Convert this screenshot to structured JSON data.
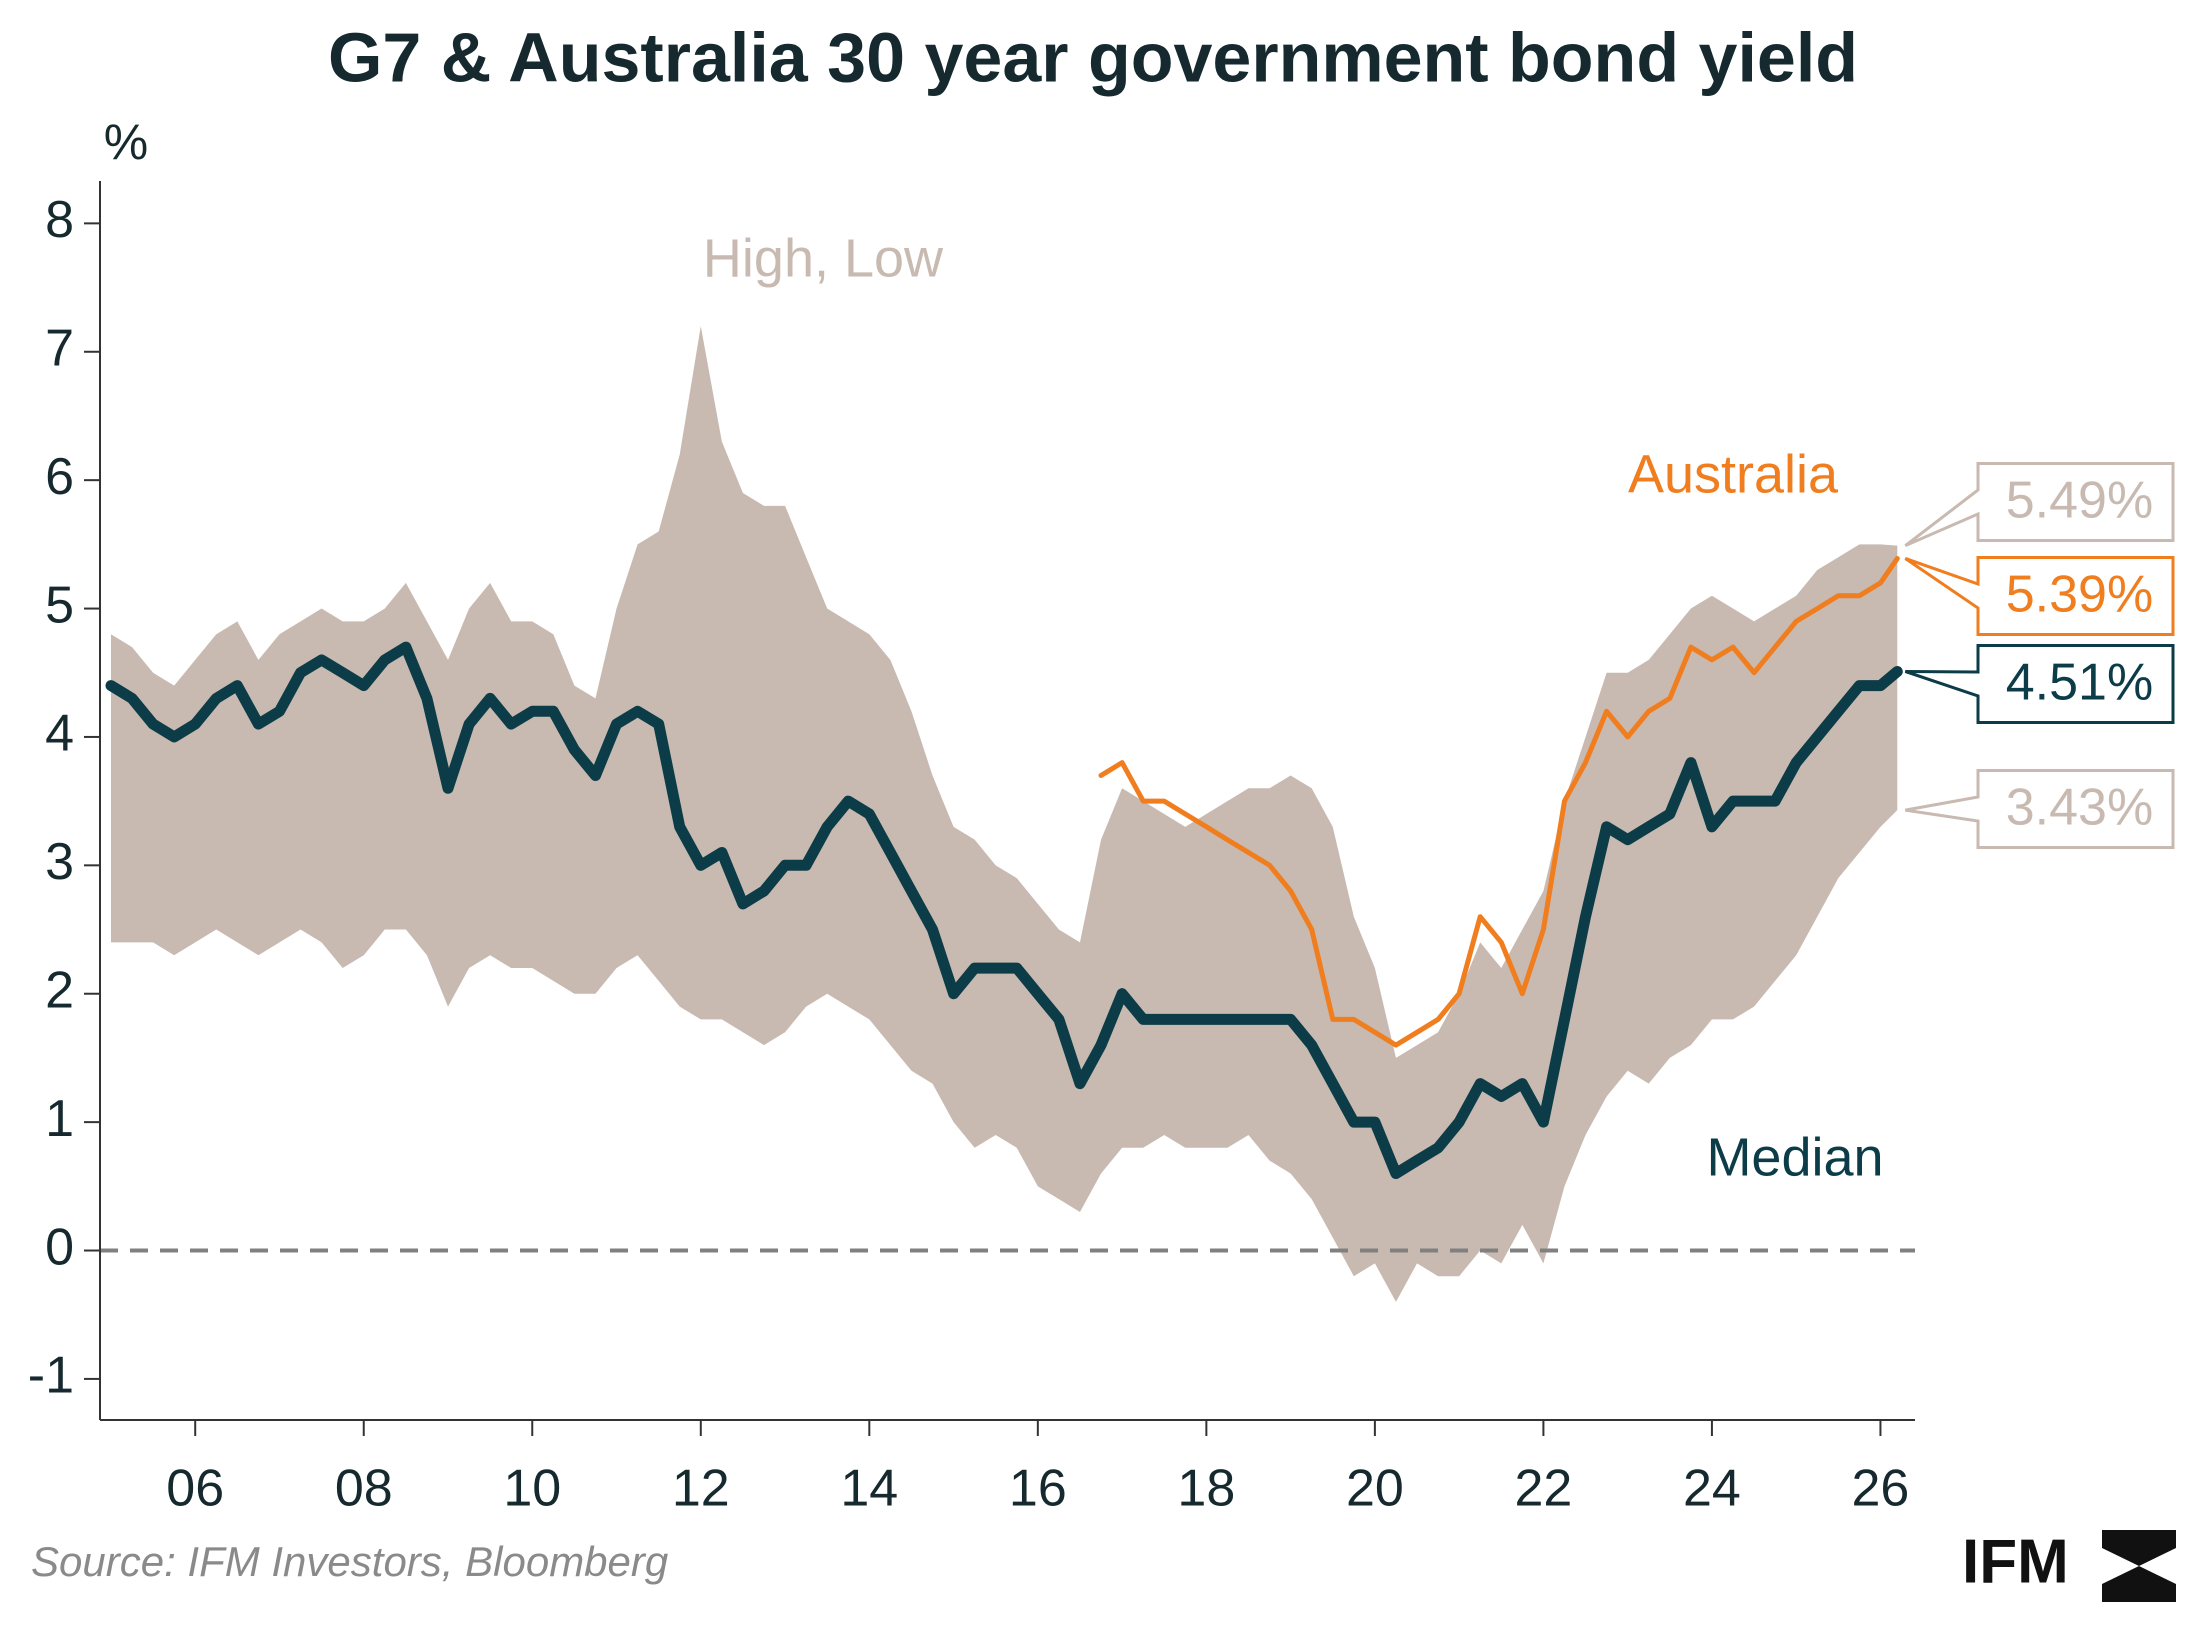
{
  "chart_data": {
    "type": "line",
    "title": "G7 & Australia 30 year government bond yield",
    "y_label": "%",
    "source": "Source: IFM Investors, Bloomberg",
    "logo_text": "IFM",
    "xlim": [
      2004.87,
      2026.41
    ],
    "ylim": [
      -1.32,
      8.33
    ],
    "xticks": [
      {
        "value": 2006,
        "label": "06"
      },
      {
        "value": 2008,
        "label": "08"
      },
      {
        "value": 2010,
        "label": "10"
      },
      {
        "value": 2012,
        "label": "12"
      },
      {
        "value": 2014,
        "label": "14"
      },
      {
        "value": 2016,
        "label": "16"
      },
      {
        "value": 2018,
        "label": "18"
      },
      {
        "value": 2020,
        "label": "20"
      },
      {
        "value": 2022,
        "label": "22"
      },
      {
        "value": 2024,
        "label": "24"
      },
      {
        "value": 2026,
        "label": "26"
      }
    ],
    "yticks": [
      -1,
      0,
      1,
      2,
      3,
      4,
      5,
      6,
      7,
      8
    ],
    "reference_line": 0,
    "x": [
      2005,
      2005.25,
      2005.5,
      2005.75,
      2006,
      2006.25,
      2006.5,
      2006.75,
      2007,
      2007.25,
      2007.5,
      2007.75,
      2008,
      2008.25,
      2008.5,
      2008.75,
      2009,
      2009.25,
      2009.5,
      2009.75,
      2010,
      2010.25,
      2010.5,
      2010.75,
      2011,
      2011.25,
      2011.5,
      2011.75,
      2012,
      2012.25,
      2012.5,
      2012.75,
      2013,
      2013.25,
      2013.5,
      2013.75,
      2014,
      2014.25,
      2014.5,
      2014.75,
      2015,
      2015.25,
      2015.5,
      2015.75,
      2016,
      2016.25,
      2016.5,
      2016.75,
      2017,
      2017.25,
      2017.5,
      2017.75,
      2018,
      2018.25,
      2018.5,
      2018.75,
      2019,
      2019.25,
      2019.5,
      2019.75,
      2020,
      2020.25,
      2020.5,
      2020.75,
      2021,
      2021.25,
      2021.5,
      2021.75,
      2022,
      2022.25,
      2022.5,
      2022.75,
      2023,
      2023.25,
      2023.5,
      2023.75,
      2024,
      2024.25,
      2024.5,
      2024.75,
      2025,
      2025.25,
      2025.5,
      2025.75,
      2026,
      2026.2
    ],
    "series": [
      {
        "name": "High, Low",
        "color": "#c8bab1",
        "high_label": "5.49%",
        "low_label": "3.43%",
        "high": [
          4.8,
          4.7,
          4.5,
          4.4,
          4.6,
          4.8,
          4.9,
          4.6,
          4.8,
          4.9,
          5.0,
          4.9,
          4.9,
          5.0,
          5.2,
          4.9,
          4.6,
          5.0,
          5.2,
          4.9,
          4.9,
          4.8,
          4.4,
          4.3,
          5.0,
          5.5,
          5.6,
          6.2,
          7.2,
          6.3,
          5.9,
          5.8,
          5.8,
          5.4,
          5.0,
          4.9,
          4.8,
          4.6,
          4.2,
          3.7,
          3.3,
          3.2,
          3.0,
          2.9,
          2.7,
          2.5,
          2.4,
          3.2,
          3.6,
          3.5,
          3.4,
          3.3,
          3.4,
          3.5,
          3.6,
          3.6,
          3.7,
          3.6,
          3.3,
          2.6,
          2.2,
          1.5,
          1.6,
          1.7,
          2.0,
          2.4,
          2.2,
          2.5,
          2.8,
          3.5,
          4.0,
          4.5,
          4.5,
          4.6,
          4.8,
          5.0,
          5.1,
          5.0,
          4.9,
          5.0,
          5.1,
          5.3,
          5.4,
          5.5,
          5.5,
          5.49
        ],
        "low": [
          2.4,
          2.4,
          2.4,
          2.3,
          2.4,
          2.5,
          2.4,
          2.3,
          2.4,
          2.5,
          2.4,
          2.2,
          2.3,
          2.5,
          2.5,
          2.3,
          1.9,
          2.2,
          2.3,
          2.2,
          2.2,
          2.1,
          2.0,
          2.0,
          2.2,
          2.3,
          2.1,
          1.9,
          1.8,
          1.8,
          1.7,
          1.6,
          1.7,
          1.9,
          2.0,
          1.9,
          1.8,
          1.6,
          1.4,
          1.3,
          1.0,
          0.8,
          0.9,
          0.8,
          0.5,
          0.4,
          0.3,
          0.6,
          0.8,
          0.8,
          0.9,
          0.8,
          0.8,
          0.8,
          0.9,
          0.7,
          0.6,
          0.4,
          0.1,
          -0.2,
          -0.1,
          -0.4,
          -0.1,
          -0.2,
          -0.2,
          0.0,
          -0.1,
          0.2,
          -0.1,
          0.5,
          0.9,
          1.2,
          1.4,
          1.3,
          1.5,
          1.6,
          1.8,
          1.8,
          1.9,
          2.1,
          2.3,
          2.6,
          2.9,
          3.1,
          3.3,
          3.43
        ]
      },
      {
        "name": "Median",
        "color": "#0c3c47",
        "end_label": "4.51%",
        "values": [
          4.4,
          4.3,
          4.1,
          4.0,
          4.1,
          4.3,
          4.4,
          4.1,
          4.2,
          4.5,
          4.6,
          4.5,
          4.4,
          4.6,
          4.7,
          4.3,
          3.6,
          4.1,
          4.3,
          4.1,
          4.2,
          4.2,
          3.9,
          3.7,
          4.1,
          4.2,
          4.1,
          3.3,
          3.0,
          3.1,
          2.7,
          2.8,
          3.0,
          3.0,
          3.3,
          3.5,
          3.4,
          3.1,
          2.8,
          2.5,
          2.0,
          2.2,
          2.2,
          2.2,
          2.0,
          1.8,
          1.3,
          1.6,
          2.0,
          1.8,
          1.8,
          1.8,
          1.8,
          1.8,
          1.8,
          1.8,
          1.8,
          1.6,
          1.3,
          1.0,
          1.0,
          0.6,
          0.7,
          0.8,
          1.0,
          1.3,
          1.2,
          1.3,
          1.0,
          1.8,
          2.6,
          3.3,
          3.2,
          3.3,
          3.4,
          3.8,
          3.3,
          3.5,
          3.5,
          3.5,
          3.8,
          4.0,
          4.2,
          4.4,
          4.4,
          4.51
        ]
      },
      {
        "name": "Australia",
        "color": "#f07d1e",
        "end_label": "5.39%",
        "values": [
          null,
          null,
          null,
          null,
          null,
          null,
          null,
          null,
          null,
          null,
          null,
          null,
          null,
          null,
          null,
          null,
          null,
          null,
          null,
          null,
          null,
          null,
          null,
          null,
          null,
          null,
          null,
          null,
          null,
          null,
          null,
          null,
          null,
          null,
          null,
          null,
          null,
          null,
          null,
          null,
          null,
          null,
          null,
          null,
          null,
          null,
          null,
          3.7,
          3.8,
          3.5,
          3.5,
          3.4,
          3.3,
          3.2,
          3.1,
          3.0,
          2.8,
          2.5,
          1.8,
          1.8,
          1.7,
          1.6,
          1.7,
          1.8,
          2.0,
          2.6,
          2.4,
          2.0,
          2.5,
          3.5,
          3.8,
          4.2,
          4.0,
          4.2,
          4.3,
          4.7,
          4.6,
          4.7,
          4.5,
          4.7,
          4.9,
          5.0,
          5.1,
          5.1,
          5.2,
          5.39
        ]
      }
    ]
  }
}
